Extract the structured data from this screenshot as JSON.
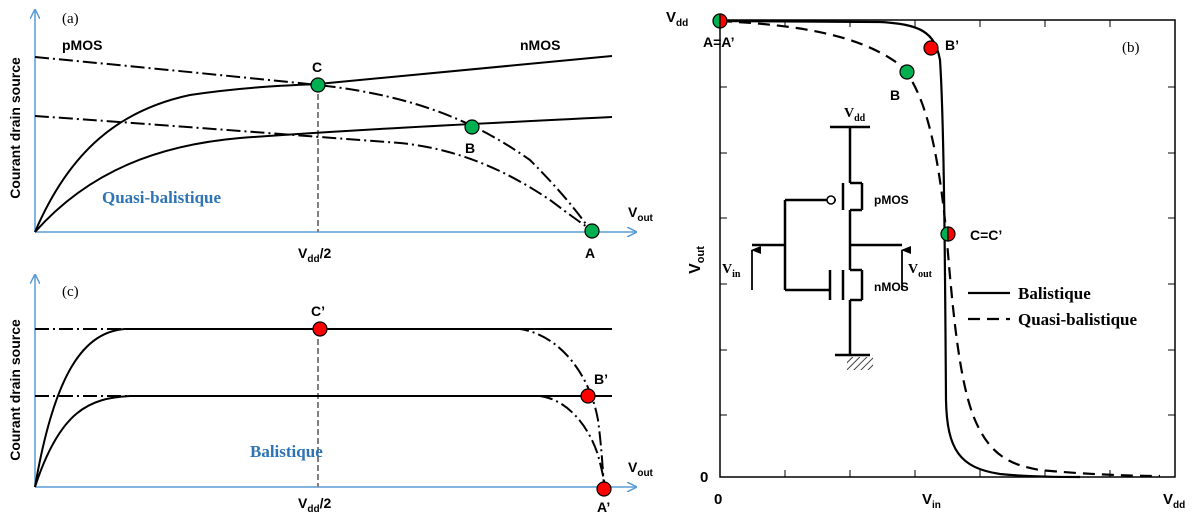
{
  "panel_a": {
    "label": "(a)",
    "ylabel": "Courant drain source",
    "pmos": "pMOS",
    "nmos": "nMOS",
    "region": "Quasi-balistique",
    "xaxis_main": "V",
    "xaxis_sub": "out",
    "mid_tick_main": "V",
    "mid_tick_sub": "dd",
    "mid_tick_tail": "/2",
    "pt_c": "C",
    "pt_b": "B",
    "pt_a": "A"
  },
  "panel_c": {
    "label": "(c)",
    "ylabel": "Courant drain source",
    "region": "Balistique",
    "xaxis_main": "V",
    "xaxis_sub": "out",
    "mid_tick_main": "V",
    "mid_tick_sub": "dd",
    "mid_tick_tail": "/2",
    "pt_c": "C’",
    "pt_b": "B’",
    "pt_a": "A’"
  },
  "panel_b": {
    "label": "(b)",
    "vdd_main": "V",
    "vdd_sub": "dd",
    "ylabel_main": "V",
    "ylabel_sub": "out",
    "x0": "0",
    "y0": "0",
    "xmid_main": "V",
    "xmid_sub": "in",
    "xend_main": "V",
    "xend_sub": "dd",
    "pt_a": "A=A’",
    "pt_b_prime": "B’",
    "pt_b": "B",
    "pt_c": "C=C’",
    "legend_solid": "Balistique",
    "legend_dashed": "Quasi-balistique",
    "circuit": {
      "vdd_main": "V",
      "vdd_sub": "dd",
      "pmos": "pMOS",
      "nmos": "nMOS",
      "vin_main": "V",
      "vin_sub": "in",
      "vout_main": "V",
      "vout_sub": "out"
    }
  },
  "colors": {
    "axis_blue": "#5B9BD5",
    "label_blue": "#2E74B5",
    "marker_green": "#00B050",
    "marker_red": "#FF0000",
    "guide_gray": "#808080"
  }
}
